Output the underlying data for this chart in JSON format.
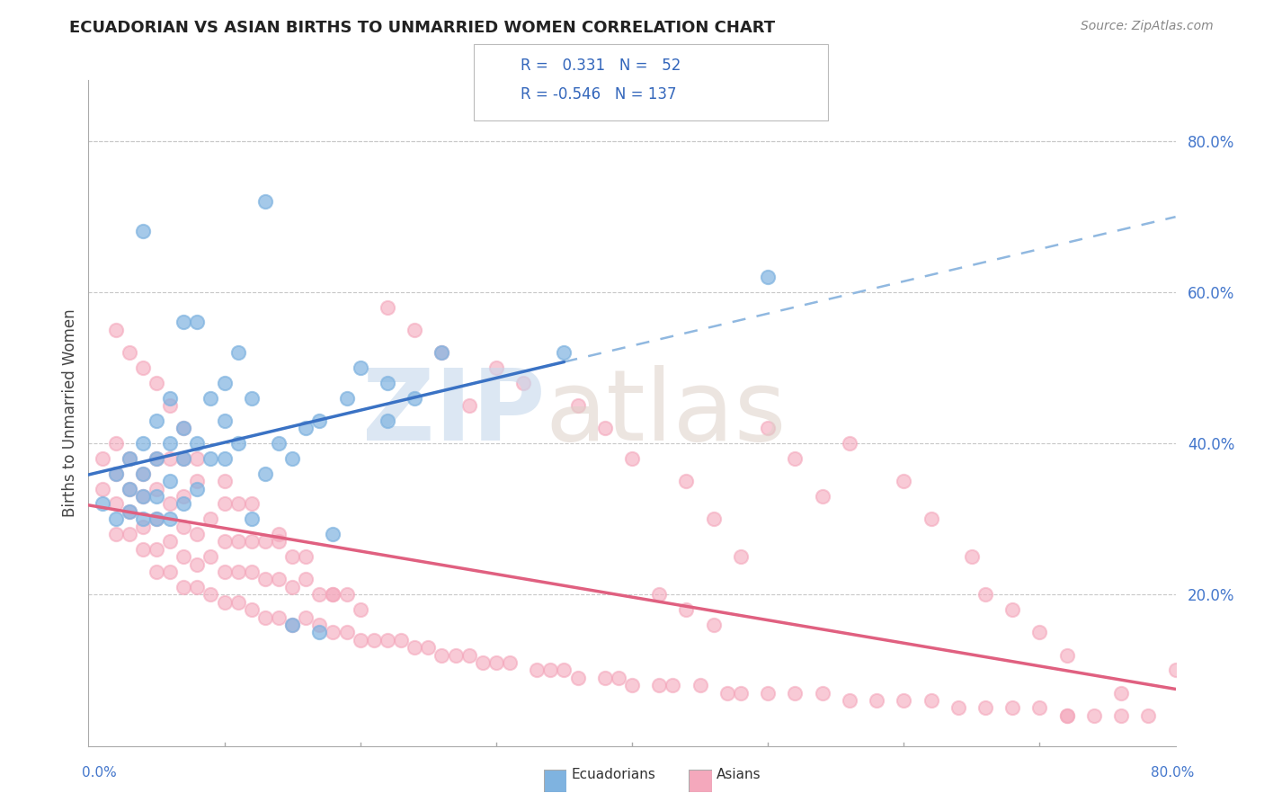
{
  "title": "ECUADORIAN VS ASIAN BIRTHS TO UNMARRIED WOMEN CORRELATION CHART",
  "source": "Source: ZipAtlas.com",
  "ylabel": "Births to Unmarried Women",
  "right_ytick_vals": [
    0.2,
    0.4,
    0.6,
    0.8
  ],
  "ecuadorian_color": "#7fb3e0",
  "asian_color": "#f4a8bc",
  "trend_blue": "#3a72c4",
  "trend_pink": "#e06080",
  "dashed_blue": "#90b8e0",
  "xlim": [
    0.0,
    0.8
  ],
  "ylim": [
    0.0,
    0.88
  ],
  "ecuadorian_x": [
    0.01,
    0.02,
    0.02,
    0.03,
    0.03,
    0.03,
    0.04,
    0.04,
    0.04,
    0.04,
    0.05,
    0.05,
    0.05,
    0.05,
    0.06,
    0.06,
    0.06,
    0.06,
    0.07,
    0.07,
    0.07,
    0.07,
    0.08,
    0.08,
    0.08,
    0.09,
    0.09,
    0.1,
    0.1,
    0.1,
    0.11,
    0.11,
    0.12,
    0.12,
    0.13,
    0.14,
    0.15,
    0.16,
    0.17,
    0.18,
    0.19,
    0.2,
    0.22,
    0.22,
    0.24,
    0.26,
    0.35,
    0.5,
    0.04,
    0.13,
    0.15,
    0.17
  ],
  "ecuadorian_y": [
    0.32,
    0.3,
    0.36,
    0.31,
    0.34,
    0.38,
    0.3,
    0.33,
    0.36,
    0.4,
    0.3,
    0.33,
    0.38,
    0.43,
    0.3,
    0.35,
    0.4,
    0.46,
    0.32,
    0.38,
    0.42,
    0.56,
    0.34,
    0.4,
    0.56,
    0.38,
    0.46,
    0.38,
    0.43,
    0.48,
    0.4,
    0.52,
    0.3,
    0.46,
    0.36,
    0.4,
    0.38,
    0.42,
    0.43,
    0.28,
    0.46,
    0.5,
    0.43,
    0.48,
    0.46,
    0.52,
    0.52,
    0.62,
    0.68,
    0.72,
    0.16,
    0.15
  ],
  "asian_x": [
    0.01,
    0.01,
    0.02,
    0.02,
    0.02,
    0.02,
    0.03,
    0.03,
    0.03,
    0.03,
    0.04,
    0.04,
    0.04,
    0.04,
    0.05,
    0.05,
    0.05,
    0.05,
    0.05,
    0.06,
    0.06,
    0.06,
    0.06,
    0.07,
    0.07,
    0.07,
    0.07,
    0.07,
    0.08,
    0.08,
    0.08,
    0.08,
    0.09,
    0.09,
    0.09,
    0.1,
    0.1,
    0.1,
    0.1,
    0.11,
    0.11,
    0.11,
    0.11,
    0.12,
    0.12,
    0.12,
    0.13,
    0.13,
    0.13,
    0.14,
    0.14,
    0.14,
    0.15,
    0.15,
    0.15,
    0.16,
    0.16,
    0.17,
    0.17,
    0.18,
    0.18,
    0.19,
    0.19,
    0.2,
    0.2,
    0.21,
    0.22,
    0.23,
    0.24,
    0.25,
    0.26,
    0.27,
    0.28,
    0.29,
    0.3,
    0.31,
    0.33,
    0.34,
    0.35,
    0.36,
    0.38,
    0.39,
    0.4,
    0.42,
    0.43,
    0.45,
    0.47,
    0.48,
    0.5,
    0.52,
    0.54,
    0.56,
    0.58,
    0.6,
    0.62,
    0.64,
    0.66,
    0.68,
    0.7,
    0.72,
    0.74,
    0.76,
    0.78,
    0.56,
    0.6,
    0.62,
    0.65,
    0.66,
    0.68,
    0.7,
    0.72,
    0.5,
    0.52,
    0.54,
    0.36,
    0.38,
    0.4,
    0.44,
    0.46,
    0.48,
    0.32,
    0.3,
    0.28,
    0.26,
    0.24,
    0.22,
    0.1,
    0.12,
    0.14,
    0.16,
    0.18,
    0.08,
    0.07,
    0.06,
    0.05,
    0.04,
    0.03,
    0.02,
    0.42,
    0.44,
    0.46,
    0.8,
    0.76,
    0.72
  ],
  "asian_y": [
    0.34,
    0.38,
    0.28,
    0.32,
    0.36,
    0.4,
    0.28,
    0.31,
    0.34,
    0.38,
    0.26,
    0.29,
    0.33,
    0.36,
    0.23,
    0.26,
    0.3,
    0.34,
    0.38,
    0.23,
    0.27,
    0.32,
    0.38,
    0.21,
    0.25,
    0.29,
    0.33,
    0.38,
    0.21,
    0.24,
    0.28,
    0.35,
    0.2,
    0.25,
    0.3,
    0.19,
    0.23,
    0.27,
    0.32,
    0.19,
    0.23,
    0.27,
    0.32,
    0.18,
    0.23,
    0.27,
    0.17,
    0.22,
    0.27,
    0.17,
    0.22,
    0.27,
    0.16,
    0.21,
    0.25,
    0.17,
    0.22,
    0.16,
    0.2,
    0.15,
    0.2,
    0.15,
    0.2,
    0.14,
    0.18,
    0.14,
    0.14,
    0.14,
    0.13,
    0.13,
    0.12,
    0.12,
    0.12,
    0.11,
    0.11,
    0.11,
    0.1,
    0.1,
    0.1,
    0.09,
    0.09,
    0.09,
    0.08,
    0.08,
    0.08,
    0.08,
    0.07,
    0.07,
    0.07,
    0.07,
    0.07,
    0.06,
    0.06,
    0.06,
    0.06,
    0.05,
    0.05,
    0.05,
    0.05,
    0.04,
    0.04,
    0.04,
    0.04,
    0.4,
    0.35,
    0.3,
    0.25,
    0.2,
    0.18,
    0.15,
    0.12,
    0.42,
    0.38,
    0.33,
    0.45,
    0.42,
    0.38,
    0.35,
    0.3,
    0.25,
    0.48,
    0.5,
    0.45,
    0.52,
    0.55,
    0.58,
    0.35,
    0.32,
    0.28,
    0.25,
    0.2,
    0.38,
    0.42,
    0.45,
    0.48,
    0.5,
    0.52,
    0.55,
    0.2,
    0.18,
    0.16,
    0.1,
    0.07,
    0.04
  ]
}
